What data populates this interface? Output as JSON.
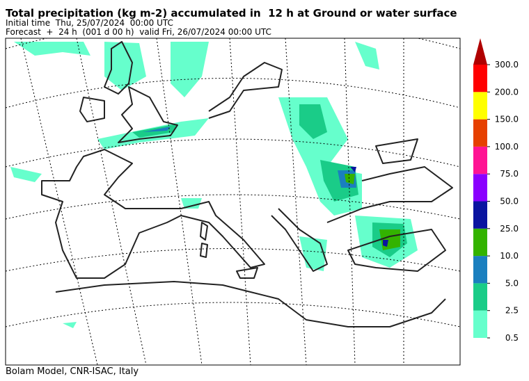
{
  "header": {
    "title": "Total precipitation (kg m-2) accumulated in  12 h at Ground or water surface",
    "initial_time": "Initial time  Thu, 25/07/2024  00:00 UTC",
    "forecast": "Forecast  +  24 h  (001 d 00 h)  valid Fri, 26/07/2024 00:00 UTC"
  },
  "colorbar": {
    "levels": [
      {
        "value": 0.5,
        "label": "0.5"
      },
      {
        "value": 2.5,
        "label": "2.5"
      },
      {
        "value": 5,
        "label": "5.0"
      },
      {
        "value": 10,
        "label": "10.0"
      },
      {
        "value": 25,
        "label": "25.0"
      },
      {
        "value": 50,
        "label": "50.0"
      },
      {
        "value": 75,
        "label": "75.0"
      },
      {
        "value": 100,
        "label": "100.0"
      },
      {
        "value": 150,
        "label": "150.0"
      },
      {
        "value": 200,
        "label": "200.0"
      },
      {
        "value": 300,
        "label": "300.0"
      }
    ],
    "colors": [
      "#66ffcc",
      "#1acc88",
      "#1a7fbf",
      "#33b300",
      "#0a14a0",
      "#8a00ff",
      "#ff1493",
      "#e64000",
      "#ffff00",
      "#ff0000",
      "#b00000"
    ]
  },
  "footer": "Bolam Model, CNR-ISAC, Italy"
}
